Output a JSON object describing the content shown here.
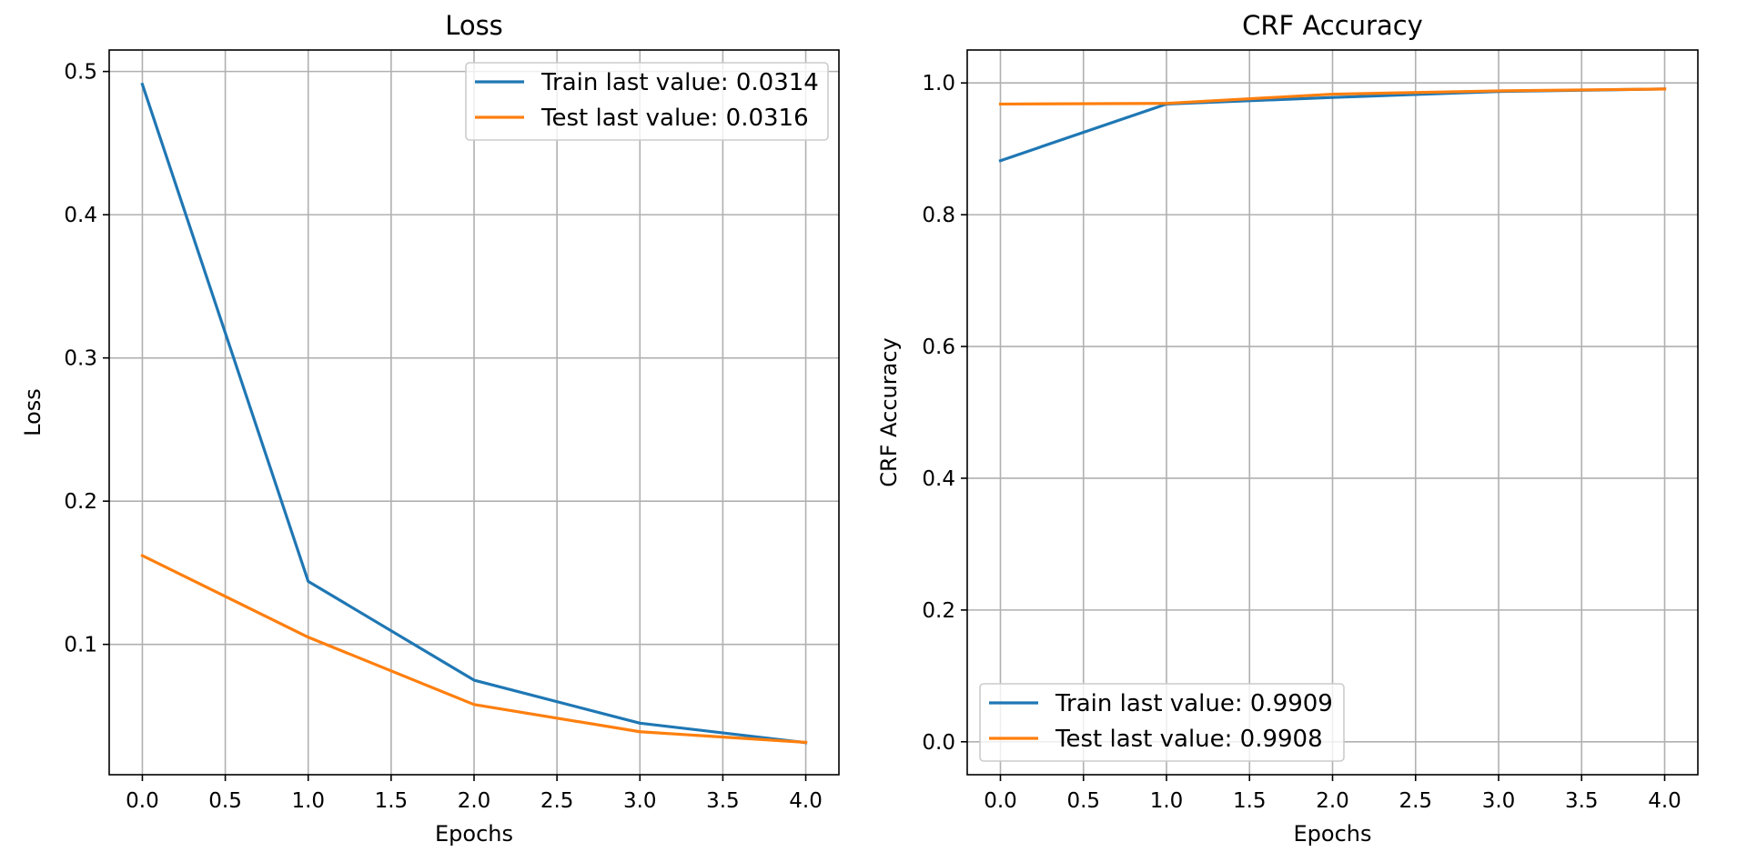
{
  "chart_data": [
    {
      "type": "line",
      "title": "Loss",
      "xlabel": "Epochs",
      "ylabel": "Loss",
      "x": [
        0,
        1,
        2,
        3,
        4
      ],
      "xlim": [
        -0.2,
        4.2
      ],
      "ylim": [
        0.009,
        0.515
      ],
      "xticks": [
        "0.0",
        "0.5",
        "1.0",
        "1.5",
        "2.0",
        "2.5",
        "3.0",
        "3.5",
        "4.0"
      ],
      "yticks": [
        "0.1",
        "0.2",
        "0.3",
        "0.4",
        "0.5"
      ],
      "grid": true,
      "legend_position": "upper right",
      "series": [
        {
          "name": "Train last value: 0.0314",
          "color": "#1f77b4",
          "values": [
            0.491,
            0.144,
            0.075,
            0.045,
            0.0314
          ]
        },
        {
          "name": "Test last value: 0.0316",
          "color": "#ff7f0e",
          "values": [
            0.162,
            0.105,
            0.058,
            0.039,
            0.0316
          ]
        }
      ]
    },
    {
      "type": "line",
      "title": "CRF Accuracy",
      "xlabel": "Epochs",
      "ylabel": "CRF Accuracy",
      "x": [
        0,
        1,
        2,
        3,
        4
      ],
      "xlim": [
        -0.2,
        4.2
      ],
      "ylim": [
        -0.05,
        1.05
      ],
      "xticks": [
        "0.0",
        "0.5",
        "1.0",
        "1.5",
        "2.0",
        "2.5",
        "3.0",
        "3.5",
        "4.0"
      ],
      "yticks": [
        "0.0",
        "0.2",
        "0.4",
        "0.6",
        "0.8",
        "1.0"
      ],
      "grid": true,
      "legend_position": "lower left",
      "series": [
        {
          "name": "Train last value: 0.9909",
          "color": "#1f77b4",
          "values": [
            0.882,
            0.968,
            0.978,
            0.987,
            0.9909
          ]
        },
        {
          "name": "Test last value: 0.9908",
          "color": "#ff7f0e",
          "values": [
            0.968,
            0.969,
            0.983,
            0.988,
            0.9908
          ]
        }
      ]
    }
  ]
}
